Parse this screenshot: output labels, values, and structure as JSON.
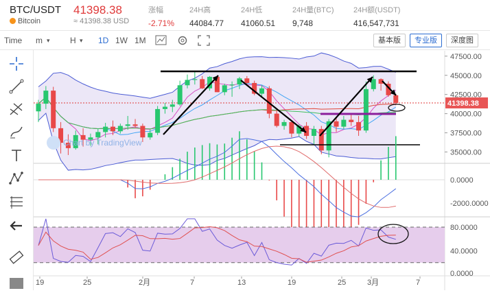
{
  "header": {
    "pair": "BTC/USDT",
    "coin": "Bitcoin",
    "last_price": "41398.38",
    "usd_price": "≈ 41398.38 USD",
    "stats": [
      {
        "label": "涨幅",
        "value": "-2.71%",
        "red": true
      },
      {
        "label": "24H高",
        "value": "44084.77"
      },
      {
        "label": "24H低",
        "value": "41060.51"
      },
      {
        "label": "24H量(BTC)",
        "value": "9,748"
      },
      {
        "label": "24H额(USDT)",
        "value": "416,547,731"
      }
    ]
  },
  "toolbar": {
    "time_label": "Time",
    "m_label": "m",
    "h_label": "H",
    "d1_label": "1D",
    "w1_label": "1W",
    "m1_label": "1M",
    "basic": "基本版",
    "pro": "专业版",
    "depth": "深度图"
  },
  "watermark": "Chart by TradingView",
  "last_price_tag": "41398.38",
  "sidebar_icons": [
    "crosshair-icon",
    "trend-line-icon",
    "pitchfork-icon",
    "brush-icon",
    "text-icon",
    "pattern-icon",
    "fib-icon",
    "back-arrow-icon",
    "ruler-icon"
  ],
  "chart_data": {
    "type": "candlestick",
    "price_axis": [
      "47500.00",
      "45000.00",
      "42500.00",
      "40000.00",
      "37500.00",
      "35000.00"
    ],
    "price_ticks": [
      47500,
      45000,
      42500,
      40000,
      37500,
      35000
    ],
    "ylim": [
      33700,
      48200
    ],
    "macd_axis": [
      "0.0000",
      "-2000.0000"
    ],
    "rsi_axis": [
      "80.0000",
      "40.0000",
      "0.0000"
    ],
    "x_labels": [
      "19",
      "25",
      "2月",
      "7",
      "13",
      "19",
      "25",
      "3月",
      "7"
    ],
    "candles": [
      [
        40300,
        41800,
        38900,
        41300
      ],
      [
        41300,
        43600,
        40600,
        43000
      ],
      [
        43000,
        43500,
        37600,
        38100
      ],
      [
        38100,
        38900,
        34800,
        36200
      ],
      [
        36200,
        37300,
        34600,
        35500
      ],
      [
        35500,
        37800,
        35300,
        37200
      ],
      [
        37200,
        38100,
        35700,
        36600
      ],
      [
        36600,
        37400,
        35800,
        36900
      ],
      [
        36900,
        38000,
        36000,
        37600
      ],
      [
        37600,
        38800,
        36900,
        38300
      ],
      [
        38300,
        39100,
        37200,
        37700
      ],
      [
        37700,
        38700,
        37400,
        38400
      ],
      [
        38400,
        39700,
        37900,
        38600
      ],
      [
        38600,
        39300,
        38100,
        38400
      ],
      [
        38400,
        38700,
        36300,
        36900
      ],
      [
        36900,
        37900,
        36600,
        37500
      ],
      [
        37500,
        41000,
        37200,
        40600
      ],
      [
        40600,
        41400,
        40000,
        40900
      ],
      [
        40900,
        41800,
        40200,
        41200
      ],
      [
        41200,
        44300,
        41000,
        43700
      ],
      [
        43700,
        45100,
        43300,
        44400
      ],
      [
        44400,
        45600,
        43800,
        44500
      ],
      [
        44500,
        44900,
        43200,
        43300
      ],
      [
        43300,
        44900,
        43000,
        44800
      ],
      [
        44800,
        45000,
        42800,
        42800
      ],
      [
        42800,
        43900,
        42400,
        43700
      ],
      [
        43700,
        44200,
        42200,
        43800
      ],
      [
        43800,
        44800,
        43200,
        44600
      ],
      [
        44600,
        44900,
        43600,
        44000
      ],
      [
        44000,
        44300,
        42400,
        42600
      ],
      [
        42600,
        43700,
        42100,
        43300
      ],
      [
        43300,
        43600,
        39400,
        40000
      ],
      [
        40000,
        40600,
        38200,
        38400
      ],
      [
        38400,
        39200,
        37900,
        38900
      ],
      [
        38900,
        39100,
        36900,
        37400
      ],
      [
        37400,
        38600,
        37000,
        38400
      ],
      [
        38400,
        38900,
        36700,
        37100
      ],
      [
        37100,
        38400,
        36000,
        38000
      ],
      [
        38000,
        38400,
        34700,
        35200
      ],
      [
        35200,
        39300,
        34300,
        39000
      ],
      [
        39000,
        39400,
        37600,
        38300
      ],
      [
        38300,
        39700,
        38000,
        39200
      ],
      [
        39200,
        40100,
        38400,
        38900
      ],
      [
        38900,
        39700,
        37100,
        37800
      ],
      [
        37800,
        44200,
        37500,
        43200
      ],
      [
        43200,
        45000,
        42900,
        44500
      ],
      [
        44500,
        44600,
        43000,
        43900
      ],
      [
        43900,
        44200,
        42200,
        42400
      ],
      [
        42400,
        42600,
        41100,
        41400
      ]
    ],
    "annotations": [
      "trend-lines",
      "support-resistance-lines",
      "circle-marks"
    ]
  }
}
